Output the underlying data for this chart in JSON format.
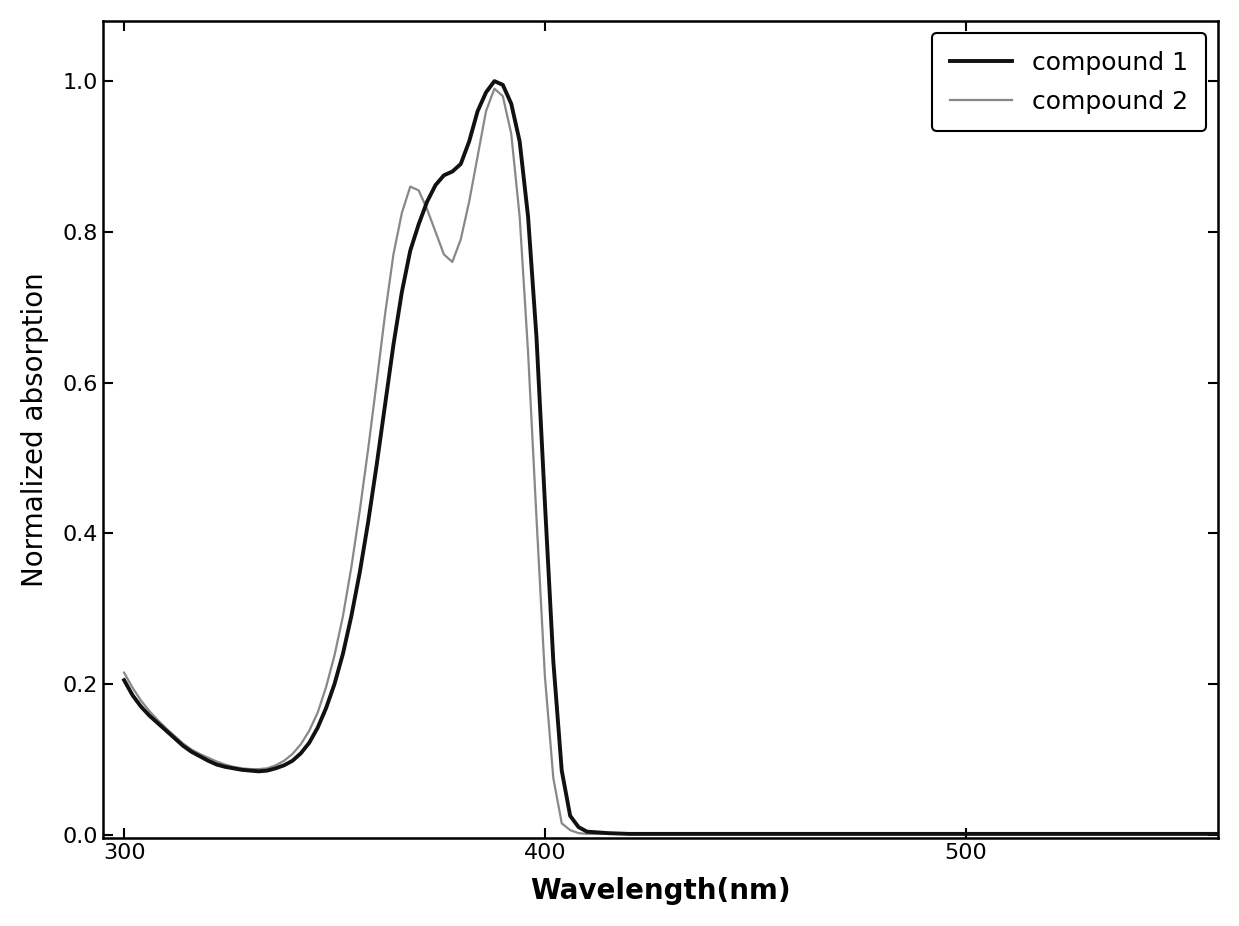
{
  "xlabel": "Wavelength(nm)",
  "ylabel": "Normalized absorption",
  "xlim": [
    295,
    560
  ],
  "ylim": [
    -0.005,
    1.08
  ],
  "xticks": [
    300,
    400,
    500
  ],
  "yticks": [
    0.0,
    0.2,
    0.4,
    0.6,
    0.8,
    1.0
  ],
  "legend_labels": [
    "compound 1",
    "compound 2"
  ],
  "compound1_color": "#111111",
  "compound2_color": "#888888",
  "compound1_lw": 2.8,
  "compound2_lw": 1.6,
  "background_color": "#ffffff",
  "legend_fontsize": 18,
  "axis_label_fontsize": 20,
  "tick_fontsize": 16,
  "compound1_x": [
    300,
    302,
    304,
    306,
    308,
    310,
    312,
    314,
    316,
    318,
    320,
    322,
    324,
    326,
    328,
    330,
    332,
    334,
    336,
    338,
    340,
    342,
    344,
    346,
    348,
    350,
    352,
    354,
    356,
    358,
    360,
    362,
    364,
    366,
    368,
    370,
    372,
    374,
    376,
    378,
    380,
    382,
    384,
    386,
    388,
    390,
    392,
    394,
    396,
    398,
    400,
    402,
    404,
    406,
    408,
    410,
    415,
    420,
    430,
    440,
    450,
    460,
    480,
    500,
    520,
    540,
    560
  ],
  "compound1_y": [
    0.205,
    0.185,
    0.17,
    0.158,
    0.148,
    0.138,
    0.128,
    0.118,
    0.11,
    0.104,
    0.098,
    0.093,
    0.09,
    0.088,
    0.086,
    0.085,
    0.084,
    0.085,
    0.088,
    0.092,
    0.098,
    0.108,
    0.122,
    0.142,
    0.168,
    0.2,
    0.24,
    0.29,
    0.348,
    0.415,
    0.49,
    0.57,
    0.65,
    0.72,
    0.775,
    0.81,
    0.84,
    0.862,
    0.875,
    0.88,
    0.89,
    0.92,
    0.96,
    0.985,
    1.0,
    0.995,
    0.97,
    0.92,
    0.82,
    0.66,
    0.44,
    0.23,
    0.085,
    0.025,
    0.01,
    0.004,
    0.002,
    0.001,
    0.001,
    0.001,
    0.001,
    0.001,
    0.001,
    0.001,
    0.001,
    0.001,
    0.001
  ],
  "compound2_x": [
    300,
    302,
    304,
    306,
    308,
    310,
    312,
    314,
    316,
    318,
    320,
    322,
    324,
    326,
    328,
    330,
    332,
    334,
    336,
    338,
    340,
    342,
    344,
    346,
    348,
    350,
    352,
    354,
    356,
    358,
    360,
    362,
    364,
    366,
    368,
    370,
    372,
    374,
    376,
    378,
    380,
    382,
    384,
    386,
    388,
    390,
    392,
    394,
    396,
    398,
    400,
    402,
    404,
    406,
    408,
    410,
    415,
    420,
    430,
    440,
    450,
    460,
    480,
    500,
    520,
    540,
    560
  ],
  "compound2_y": [
    0.215,
    0.195,
    0.178,
    0.164,
    0.152,
    0.141,
    0.131,
    0.121,
    0.113,
    0.107,
    0.102,
    0.097,
    0.093,
    0.09,
    0.088,
    0.087,
    0.087,
    0.088,
    0.092,
    0.098,
    0.107,
    0.12,
    0.138,
    0.162,
    0.196,
    0.238,
    0.29,
    0.355,
    0.43,
    0.512,
    0.6,
    0.69,
    0.77,
    0.825,
    0.86,
    0.855,
    0.83,
    0.8,
    0.77,
    0.76,
    0.79,
    0.84,
    0.9,
    0.96,
    0.99,
    0.98,
    0.93,
    0.82,
    0.64,
    0.42,
    0.21,
    0.075,
    0.015,
    0.006,
    0.002,
    0.001,
    0.001,
    0.001,
    0.001,
    0.001,
    0.001,
    0.001,
    0.001,
    0.001,
    0.001,
    0.001,
    0.001
  ]
}
